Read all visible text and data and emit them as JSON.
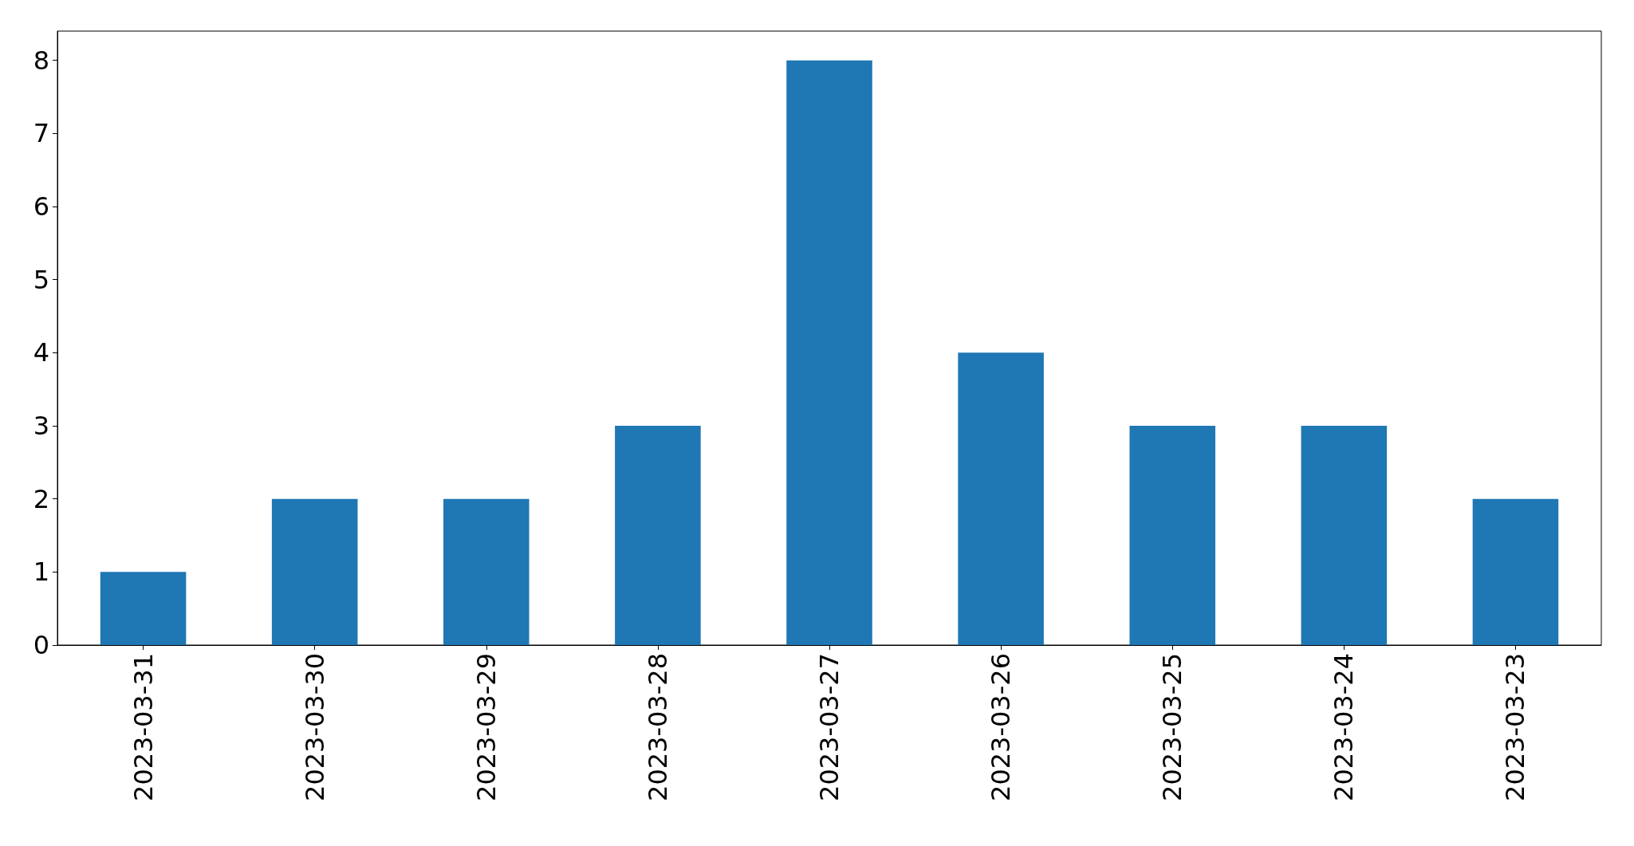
{
  "chart_data": {
    "type": "bar",
    "categories": [
      "2023-03-31",
      "2023-03-30",
      "2023-03-29",
      "2023-03-28",
      "2023-03-27",
      "2023-03-26",
      "2023-03-25",
      "2023-03-24",
      "2023-03-23"
    ],
    "values": [
      1,
      2,
      2,
      3,
      8,
      4,
      3,
      3,
      2
    ],
    "color": "#1f77b4",
    "ylim": [
      0,
      8.4
    ],
    "yticks": [
      0,
      1,
      2,
      3,
      4,
      5,
      6,
      7,
      8
    ],
    "grid": false
  }
}
